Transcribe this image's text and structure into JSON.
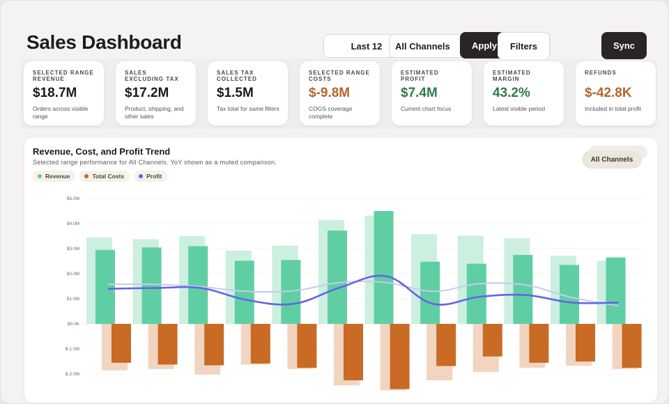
{
  "header": {
    "title": "Sales Dashboard",
    "range_label": "Last 12",
    "channel_label": "All Channels",
    "apply_label": "Apply",
    "filters_label": "Filters",
    "sync_label": "Sync"
  },
  "kpis": [
    {
      "label": "Selected Range Revenue",
      "value": "$18.7M",
      "note": "Orders across visible range",
      "tone": "default"
    },
    {
      "label": "Sales Excluding Tax",
      "value": "$17.2M",
      "note": "Product, shipping, and other sales",
      "tone": "default"
    },
    {
      "label": "Sales Tax Collected",
      "value": "$1.5M",
      "note": "Tax total for same filters",
      "tone": "default"
    },
    {
      "label": "Selected Range Costs",
      "value": "$-9.8M",
      "note": "COGS coverage complete",
      "tone": "neg"
    },
    {
      "label": "Estimated Profit",
      "value": "$7.4M",
      "note": "Current chart focus",
      "tone": "pos"
    },
    {
      "label": "Estimated Margin",
      "value": "43.2%",
      "note": "Latest visible period",
      "tone": "pos"
    },
    {
      "label": "Refunds",
      "value": "$-42.8K",
      "note": "Included in total profit",
      "tone": "neg"
    }
  ],
  "chart": {
    "title": "Revenue, Cost, and Profit Trend",
    "subtitle": "Selected range performance for All Channels. YoY shown as a muted comparison.",
    "channel_chip": "All Channels",
    "legend": [
      {
        "name": "Revenue",
        "color": "#5fcfa3"
      },
      {
        "name": "Total Costs",
        "color": "#c96a25"
      },
      {
        "name": "Profit",
        "color": "#6563e6"
      }
    ]
  },
  "chart_data": {
    "type": "bar",
    "y_ticks": [
      "$5.0M",
      "$4.0M",
      "$3.0M",
      "$2.0M",
      "$1.0M",
      "$0.0K",
      "$-1.0M",
      "$-2.0M"
    ],
    "ylim": [
      -2.6,
      5.3
    ],
    "unit": "$M",
    "series": [
      {
        "name": "Revenue",
        "values": [
          2.95,
          3.05,
          3.1,
          2.52,
          2.55,
          3.72,
          4.5,
          2.48,
          2.4,
          2.75,
          2.35,
          2.65
        ]
      },
      {
        "name": "Total Costs",
        "values": [
          -1.55,
          -1.62,
          -1.65,
          -1.58,
          -1.75,
          -2.25,
          -2.6,
          -1.68,
          -1.3,
          -1.55,
          -1.5,
          -1.75
        ]
      },
      {
        "name": "Profit",
        "values": [
          1.4,
          1.43,
          1.43,
          0.95,
          0.8,
          1.45,
          1.9,
          0.8,
          1.08,
          1.15,
          0.85,
          0.85
        ]
      },
      {
        "name": "Revenue YoY",
        "values": [
          3.45,
          3.38,
          3.5,
          2.92,
          3.12,
          4.15,
          4.32,
          3.58,
          3.52,
          3.42,
          2.72,
          2.52
        ]
      },
      {
        "name": "Total Costs YoY",
        "values": [
          -1.85,
          -1.8,
          -2.02,
          -1.62,
          -1.8,
          -2.45,
          -2.65,
          -2.25,
          -1.92,
          -1.75,
          -1.67,
          -1.8
        ]
      },
      {
        "name": "Profit YoY",
        "values": [
          1.58,
          1.58,
          1.48,
          1.3,
          1.32,
          1.65,
          1.65,
          1.3,
          1.6,
          1.55,
          1.05,
          0.72
        ]
      }
    ],
    "colors": {
      "revenue": "#5fcfa3",
      "revenue_yoy": "#ccefe0",
      "cost": "#c96a25",
      "cost_yoy": "#f1d5c0",
      "profit": "#6563e6",
      "profit_yoy": "#c9c8f2",
      "grid": "#ececea"
    }
  }
}
